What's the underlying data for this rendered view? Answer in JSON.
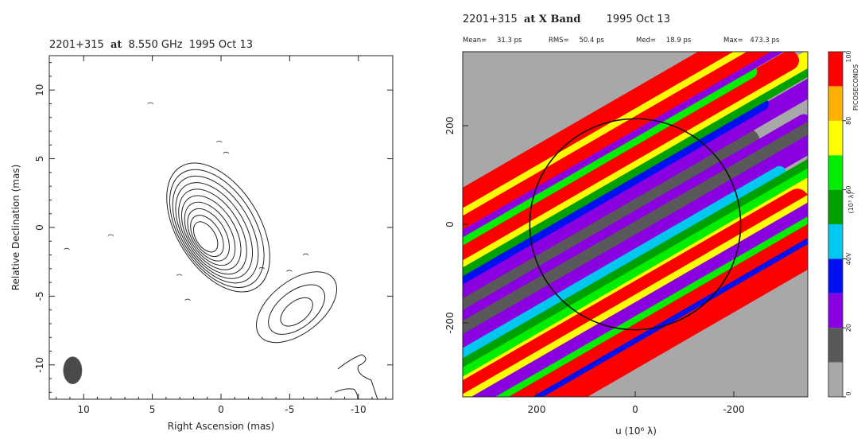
{
  "chart_data": [
    {
      "type": "contour",
      "title": {
        "source": "2201+315",
        "at": "at",
        "freq": "8.550 GHz",
        "date": "1995 Oct 13"
      },
      "xlabel": "Right Ascension   (mas)",
      "ylabel": "Relative Declination   (mas)",
      "xlim": [
        12.5,
        -12.5
      ],
      "ylim": [
        -12.5,
        12.5
      ],
      "xticks": [
        10,
        5,
        0,
        -5,
        -10
      ],
      "xtick_labels": [
        "10",
        "5",
        "0",
        "-5",
        "-10"
      ],
      "yticks": [
        10,
        5,
        0,
        -5,
        -10
      ],
      "ytick_labels": [
        "10",
        "5",
        "0",
        "-5",
        "-10"
      ],
      "core": {
        "ra": 0.2,
        "dec": 0.0,
        "levels": 10
      },
      "jet_component": {
        "ra": -5.5,
        "dec": -5.8,
        "levels": 3
      },
      "beam": {
        "ra": 10.8,
        "dec": -10.4,
        "major_mas": 1.6,
        "minor_mas": 1.1
      }
    },
    {
      "type": "heatmap",
      "title": {
        "source": "2201+315",
        "band": "at X Band",
        "date": "1995 Oct 13"
      },
      "stats": [
        {
          "label": "Mean=",
          "value": "31.3 ps"
        },
        {
          "label": "RMS=",
          "value": "50.4 ps"
        },
        {
          "label": "Med=",
          "value": "18.9 ps"
        },
        {
          "label": "Max=",
          "value": "473.3 ps"
        }
      ],
      "xlabel": "u  (10⁶ λ)",
      "ylabel": "",
      "xlim": [
        350,
        -350
      ],
      "ylim": [
        -350,
        350
      ],
      "xticks": [
        200,
        0,
        -200
      ],
      "xtick_labels": [
        "200",
        "0",
        "-200"
      ],
      "yticks": [
        200,
        0,
        -200
      ],
      "ytick_labels": [
        "200",
        "0",
        "-200"
      ],
      "uv_circle_radius": 345,
      "colorbar": {
        "label": "(10³ λ)",
        "side_label": "PICOSECONDS",
        "colors": [
          "#a8a8a8",
          "#595959",
          "#8a00e0",
          "#0010f0",
          "#00c8f0",
          "#00a000",
          "#00ee00",
          "#ffff00",
          "#ffb000",
          "#ff0000"
        ],
        "tick_values": [
          0,
          20,
          40,
          60,
          80,
          100
        ],
        "tick_labels": [
          "0",
          "20",
          "40V",
          "60",
          "80",
          "100"
        ]
      }
    }
  ]
}
